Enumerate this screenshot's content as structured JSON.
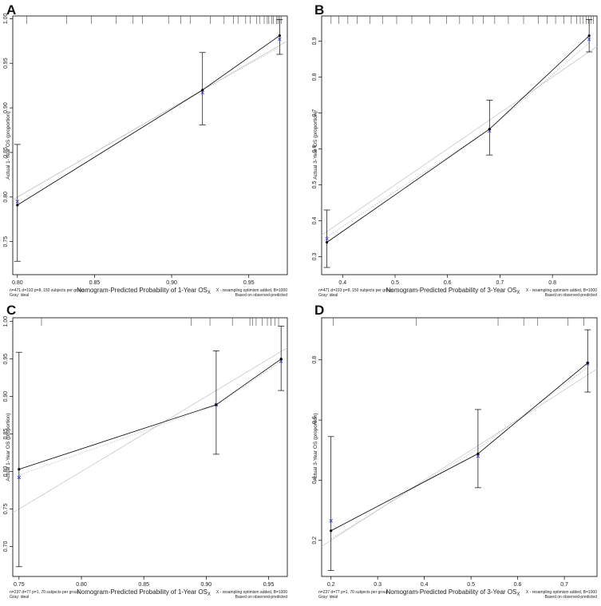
{
  "figure": {
    "panels": [
      "A",
      "B",
      "C",
      "D"
    ]
  },
  "colors": {
    "apparent_line": "#000000",
    "bias_corrected_marker": "#3a3ac8",
    "ideal_line": "#c8c8c8",
    "frame": "#000000"
  },
  "chart_data": [
    {
      "panel": "A",
      "type": "line",
      "title": "",
      "xlabel": "Nomogram-Predicted Probability of 1-Year OS",
      "xlabel_sub": "X",
      "ylabel": "Actual 1-Year OS (proportion)",
      "xlim": [
        0.797,
        0.975
      ],
      "ylim": [
        0.713,
        1.003
      ],
      "xticks": [
        0.8,
        0.85,
        0.9,
        0.95
      ],
      "xtick_labels": [
        "0.80",
        "0.85",
        "0.90",
        "0.95"
      ],
      "yticks": [
        0.75,
        0.8,
        0.85,
        0.9,
        0.95,
        1.0
      ],
      "ytick_labels": [
        "0.75",
        "0.80",
        "0.85",
        "0.90",
        "0.95",
        "1.00"
      ],
      "ideal": [
        [
          0.797,
          0.797
        ],
        [
          0.975,
          0.975
        ]
      ],
      "bias_corrected_line": [
        [
          0.8,
          0.8
        ],
        [
          0.92,
          0.92
        ],
        [
          0.97,
          0.968
        ]
      ],
      "groups": [
        {
          "x": 0.8,
          "observed": 0.791,
          "lower": 0.728,
          "upper": 0.859,
          "bias_corrected": 0.795
        },
        {
          "x": 0.92,
          "observed": 0.92,
          "lower": 0.881,
          "upper": 0.962,
          "bias_corrected": 0.917
        },
        {
          "x": 0.97,
          "observed": 0.981,
          "lower": 0.96,
          "upper": 0.999,
          "bias_corrected": 0.977
        }
      ],
      "rug": [
        0.806,
        0.832,
        0.848,
        0.864,
        0.875,
        0.881,
        0.898,
        0.906,
        0.912,
        0.925,
        0.934,
        0.94,
        0.943,
        0.948,
        0.951,
        0.955,
        0.957,
        0.96,
        0.962,
        0.963,
        0.965,
        0.966,
        0.968,
        0.969,
        0.97,
        0.971
      ],
      "note_left": [
        "n=471 d=193 p=8, 150 subjects per group",
        "Gray: ideal"
      ],
      "note_right": [
        "X - resampling optimism added, B=1000",
        "Based on observed-predicted"
      ]
    },
    {
      "panel": "B",
      "type": "line",
      "title": "",
      "xlabel": "Nomogram-Predicted Probability of 3-Year OS",
      "xlabel_sub": "X",
      "ylabel": "Actual 3-Year OS (proportion)",
      "xlim": [
        0.36,
        0.885
      ],
      "ylim": [
        0.25,
        0.97
      ],
      "xticks": [
        0.4,
        0.5,
        0.6,
        0.7,
        0.8
      ],
      "xtick_labels": [
        "0.4",
        "0.5",
        "0.6",
        "0.7",
        "0.8"
      ],
      "yticks": [
        0.3,
        0.4,
        0.5,
        0.6,
        0.7,
        0.8,
        0.9
      ],
      "ytick_labels": [
        "0.3",
        "0.4",
        "0.5",
        "0.6",
        "0.7",
        "0.8",
        "0.9"
      ],
      "ideal": [
        [
          0.36,
          0.36
        ],
        [
          0.885,
          0.885
        ]
      ],
      "bias_corrected_line": [
        [
          0.37,
          0.355
        ],
        [
          0.68,
          0.655
        ],
        [
          0.87,
          0.895
        ]
      ],
      "groups": [
        {
          "x": 0.37,
          "observed": 0.34,
          "lower": 0.27,
          "upper": 0.43,
          "bias_corrected": 0.35
        },
        {
          "x": 0.68,
          "observed": 0.655,
          "lower": 0.583,
          "upper": 0.736,
          "bias_corrected": 0.65
        },
        {
          "x": 0.87,
          "observed": 0.915,
          "lower": 0.87,
          "upper": 0.96,
          "bias_corrected": 0.905
        }
      ],
      "rug": [
        0.378,
        0.393,
        0.41,
        0.428,
        0.452,
        0.476,
        0.503,
        0.532,
        0.566,
        0.598,
        0.623,
        0.648,
        0.668,
        0.69,
        0.716,
        0.745,
        0.773,
        0.79,
        0.806,
        0.822,
        0.836,
        0.846,
        0.853,
        0.858,
        0.864,
        0.869,
        0.874,
        0.878
      ],
      "note_left": [
        "n=471 d=193 p=8, 150 subjects per group",
        "Gray: ideal"
      ],
      "note_right": [
        "X - resampling optimism added, B=1000",
        "Based on observed-predicted"
      ]
    },
    {
      "panel": "C",
      "type": "line",
      "title": "",
      "xlabel": "Nomogram-Predicted Probability of 1-Year OS",
      "xlabel_sub": "X",
      "ylabel": "Actual 1-Year OS (proportion)",
      "xlim": [
        0.745,
        0.965
      ],
      "ylim": [
        0.66,
        1.005
      ],
      "xticks": [
        0.75,
        0.8,
        0.85,
        0.9,
        0.95
      ],
      "xtick_labels": [
        "0.75",
        "0.80",
        "0.85",
        "0.90",
        "0.95"
      ],
      "yticks": [
        0.7,
        0.75,
        0.8,
        0.85,
        0.9,
        0.95,
        1.0
      ],
      "ytick_labels": [
        "0.70",
        "0.75",
        "0.80",
        "0.85",
        "0.90",
        "0.95",
        "1.00"
      ],
      "ideal": [
        [
          0.745,
          0.745
        ],
        [
          0.965,
          0.965
        ]
      ],
      "bias_corrected_line": [
        [
          0.75,
          0.795
        ],
        [
          0.908,
          0.888
        ],
        [
          0.96,
          0.947
        ]
      ],
      "groups": [
        {
          "x": 0.75,
          "observed": 0.803,
          "lower": 0.673,
          "upper": 0.959,
          "bias_corrected": 0.792
        },
        {
          "x": 0.908,
          "observed": 0.889,
          "lower": 0.823,
          "upper": 0.961,
          "bias_corrected": 0.889
        },
        {
          "x": 0.96,
          "observed": 0.95,
          "lower": 0.908,
          "upper": 0.994,
          "bias_corrected": 0.947
        }
      ],
      "rug": [
        0.768,
        0.888,
        0.903,
        0.921,
        0.935,
        0.937,
        0.94,
        0.945,
        0.949,
        0.952,
        0.955,
        0.958
      ],
      "note_left": [
        "n=237 d=77 p=1, 70 subjects per group",
        "Gray: ideal"
      ],
      "note_right": [
        "X - resampling optimism added, B=1000",
        "Based on observed-predicted"
      ]
    },
    {
      "panel": "D",
      "type": "line",
      "title": "",
      "xlabel": "Nomogram-Predicted Probability of 3-Year OS",
      "xlabel_sub": "X",
      "ylabel": "Actual 3-Year OS (proportion)",
      "xlim": [
        0.18,
        0.77
      ],
      "ylim": [
        0.08,
        0.94
      ],
      "xticks": [
        0.2,
        0.3,
        0.4,
        0.5,
        0.6,
        0.7
      ],
      "xtick_labels": [
        "0.2",
        "0.3",
        "0.4",
        "0.5",
        "0.6",
        "0.7"
      ],
      "yticks": [
        0.2,
        0.4,
        0.6,
        0.8
      ],
      "ytick_labels": [
        "0.2",
        "0.4",
        "0.6",
        "0.8"
      ],
      "ideal": [
        [
          0.18,
          0.18
        ],
        [
          0.77,
          0.77
        ]
      ],
      "bias_corrected_line": [
        [
          0.2,
          0.205
        ],
        [
          0.515,
          0.505
        ],
        [
          0.75,
          0.775
        ]
      ],
      "groups": [
        {
          "x": 0.2,
          "observed": 0.232,
          "lower": 0.1,
          "upper": 0.545,
          "bias_corrected": 0.265
        },
        {
          "x": 0.515,
          "observed": 0.488,
          "lower": 0.375,
          "upper": 0.635,
          "bias_corrected": 0.48
        },
        {
          "x": 0.75,
          "observed": 0.79,
          "lower": 0.693,
          "upper": 0.9,
          "bias_corrected": 0.787
        }
      ],
      "rug": [
        0.205,
        0.383,
        0.558,
        0.613,
        0.643,
        0.708,
        0.742
      ],
      "note_left": [
        "n=237 d=77 p=1, 70 subjects per group",
        "Gray: ideal"
      ],
      "note_right": [
        "X - resampling optimism added, B=1000",
        "Based on observed-predicted"
      ]
    }
  ]
}
